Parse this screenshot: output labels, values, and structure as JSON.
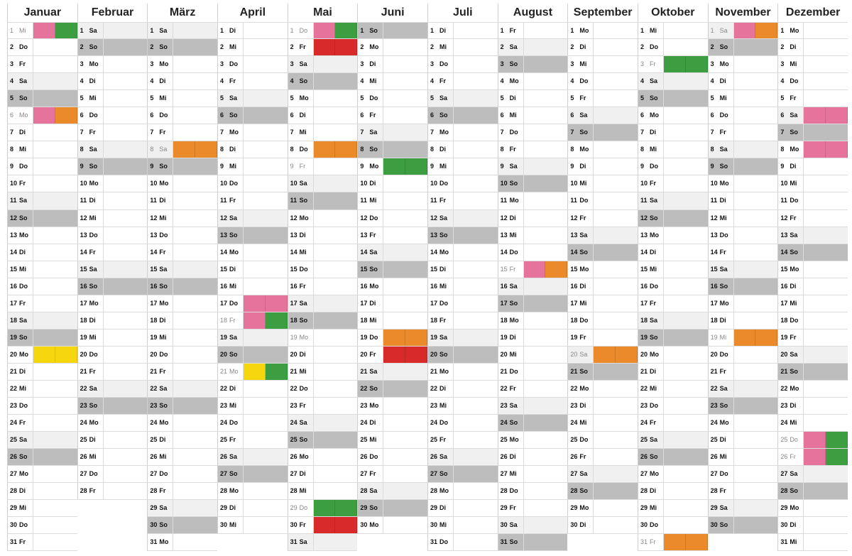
{
  "colors": {
    "pink": "#e6739b",
    "green": "#3c9e40",
    "orange": "#ea8a2a",
    "red": "#d82a2a",
    "yellow": "#f6d60e",
    "saturday": "#f0f0f0",
    "sunday": "#bdbdbd"
  },
  "months": [
    {
      "name": "Januar",
      "start": 2,
      "len": 31
    },
    {
      "name": "Februar",
      "start": 5,
      "len": 28
    },
    {
      "name": "März",
      "start": 5,
      "len": 31
    },
    {
      "name": "April",
      "start": 1,
      "len": 30
    },
    {
      "name": "Mai",
      "start": 3,
      "len": 31
    },
    {
      "name": "Juni",
      "start": 6,
      "len": 30
    },
    {
      "name": "Juli",
      "start": 1,
      "len": 31
    },
    {
      "name": "August",
      "start": 4,
      "len": 31
    },
    {
      "name": "September",
      "start": 0,
      "len": 30
    },
    {
      "name": "Oktober",
      "start": 2,
      "len": 31
    },
    {
      "name": "November",
      "start": 5,
      "len": 30
    },
    {
      "name": "Dezember",
      "start": 0,
      "len": 31
    }
  ],
  "weekdays": [
    "Mo",
    "Di",
    "Mi",
    "Do",
    "Fr",
    "Sa",
    "So"
  ],
  "holidays": {
    "0": [
      1,
      6
    ],
    "2": [
      8
    ],
    "3": [
      18,
      21
    ],
    "4": [
      1,
      9,
      19,
      29
    ],
    "6": [],
    "7": [
      15
    ],
    "8": [
      20
    ],
    "9": [
      3,
      31
    ],
    "10": [
      1,
      19
    ],
    "11": [
      25,
      26
    ]
  },
  "markers": {
    "0": {
      "1": [
        "pink",
        "green"
      ],
      "6": [
        "pink",
        "orange"
      ],
      "20": [
        "yellow",
        "yellow"
      ]
    },
    "2": {
      "8": [
        "orange",
        "orange"
      ]
    },
    "3": {
      "17": [
        "pink",
        "pink"
      ],
      "18": [
        "pink",
        "green"
      ],
      "21": [
        "yellow",
        "green"
      ]
    },
    "4": {
      "1": [
        "pink",
        "green"
      ],
      "2": [
        "red",
        "red"
      ],
      "8": [
        "orange",
        "orange"
      ],
      "29": [
        "green",
        "green"
      ],
      "30": [
        "red",
        "red"
      ]
    },
    "5": {
      "9": [
        "green",
        "green"
      ],
      "19": [
        "orange",
        "orange"
      ],
      "20": [
        "red",
        "red"
      ]
    },
    "7": {
      "15": [
        "pink",
        "orange"
      ]
    },
    "8": {
      "20": [
        "orange",
        "orange"
      ]
    },
    "9": {
      "3": [
        "green",
        "green"
      ],
      "31": [
        "orange",
        "orange"
      ]
    },
    "10": {
      "1": [
        "pink",
        "orange"
      ],
      "19": [
        "orange",
        "orange"
      ]
    },
    "11": {
      "6": [
        "pink",
        "pink"
      ],
      "8": [
        "pink",
        "pink"
      ],
      "25": [
        "pink",
        "green"
      ],
      "26": [
        "pink",
        "green"
      ]
    }
  }
}
